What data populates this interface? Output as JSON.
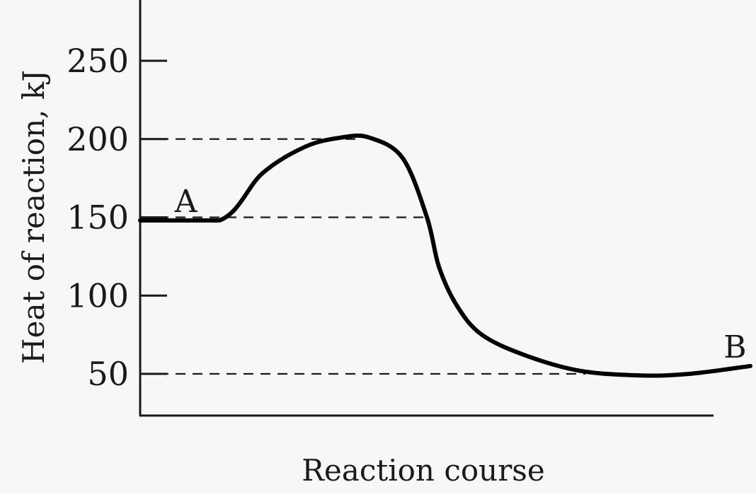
{
  "chart_data": {
    "type": "line",
    "xlabel": "Reaction course",
    "ylabel": "Heat of reaction, kJ",
    "ylim": [
      20,
      290
    ],
    "xlim": [
      0,
      1
    ],
    "yticks": [
      50,
      100,
      150,
      200,
      250
    ],
    "tick_labels": [
      "50",
      "100",
      "150",
      "200",
      "250"
    ],
    "grid": false,
    "series": [
      {
        "x": [
          0,
          0.13,
          0.2,
          0.27,
          0.33,
          0.375,
          0.43,
          0.47,
          0.49,
          0.52,
          0.56,
          0.63,
          0.72,
          0.82,
          0.9,
          1.0
        ],
        "y": [
          148,
          148,
          178,
          195,
          201,
          201,
          188,
          150,
          118,
          93,
          75,
          62,
          52,
          49,
          50,
          55
        ]
      }
    ],
    "reference_lines": [
      200,
      150,
      50
    ],
    "annotations": [
      {
        "text": "A",
        "x": 0.075,
        "y": 158
      },
      {
        "text": "B",
        "x": 0.975,
        "y": 65
      }
    ]
  }
}
